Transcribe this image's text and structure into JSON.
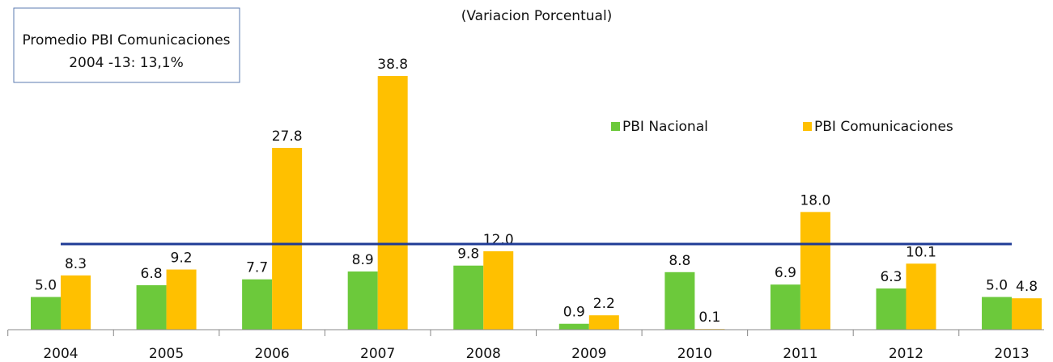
{
  "chart_data": {
    "type": "bar",
    "title": "(Variacion Porcentual)",
    "annotation": [
      "Promedio PBI Comunicaciones",
      "2004 -13: 13,1%"
    ],
    "categories": [
      "2004",
      "2005",
      "2006",
      "2007",
      "2008",
      "2009",
      "2010",
      "2011",
      "2012",
      "2013"
    ],
    "series": [
      {
        "name": "PBI Nacional",
        "color": "#6cc93b",
        "values": [
          5.0,
          6.8,
          7.7,
          8.9,
          9.8,
          0.9,
          8.8,
          6.9,
          6.3,
          5.0
        ],
        "value_labels": [
          "5.0",
          "6.8",
          "7.7",
          "8.9",
          "9.8",
          "0.9",
          "8.8",
          "6.9",
          "6.3",
          "5.0"
        ]
      },
      {
        "name": "PBI Comunicaciones",
        "color": "#ffc000",
        "values": [
          8.3,
          9.2,
          27.8,
          38.8,
          12.0,
          2.2,
          0.1,
          18.0,
          10.1,
          4.8
        ],
        "value_labels": [
          "8.3",
          "9.2",
          "27.8",
          "38.8",
          "12.0",
          "2.2",
          "0.1",
          "18.0",
          "10.1",
          "4.8"
        ]
      }
    ],
    "average_line": {
      "value": 13.1,
      "color": "#1f3b96"
    },
    "ylim": [
      0,
      50
    ],
    "legend": "upper right"
  }
}
